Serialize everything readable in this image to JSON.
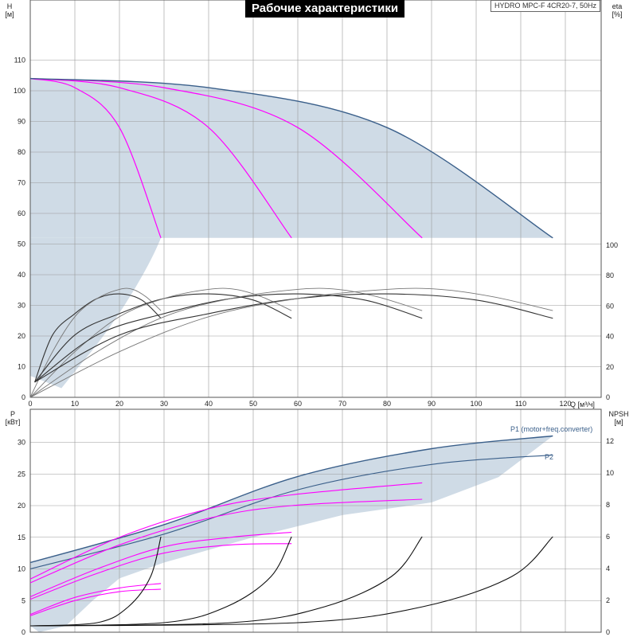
{
  "title": "Рабочие характеристики",
  "model": "HYDRO MPC-F 4CR20-7, 50Hz",
  "colors": {
    "envelope": "#cfdbe6",
    "max_curve": "#3a5f8a",
    "pump_curve": "#ff00ff",
    "eff_curve": "#222222",
    "grid": "#999999"
  },
  "chart_data": [
    {
      "type": "line",
      "name": "top",
      "axes": {
        "x": {
          "label": "Q",
          "unit": "[м³/ч]",
          "ticks": [
            0,
            10,
            20,
            30,
            40,
            50,
            60,
            70,
            80,
            90,
            100,
            110,
            120
          ]
        },
        "y_left": {
          "label": "H",
          "unit": "[м]",
          "ticks": [
            0,
            10,
            20,
            30,
            40,
            50,
            60,
            70,
            80,
            90,
            100,
            110
          ]
        },
        "y_right": {
          "label": "eta",
          "unit": "[%]",
          "ticks": [
            0,
            20,
            40,
            60,
            80,
            100
          ]
        }
      },
      "head_curves": [
        {
          "pumps": 1,
          "points": [
            [
              0,
              104
            ],
            [
              10,
              101
            ],
            [
              20,
              88
            ],
            [
              29.3,
              52
            ]
          ]
        },
        {
          "pumps": 2,
          "points": [
            [
              0,
              104
            ],
            [
              20,
              101
            ],
            [
              40,
              88
            ],
            [
              58.6,
              52
            ]
          ]
        },
        {
          "pumps": 3,
          "points": [
            [
              0,
              104
            ],
            [
              30,
              101
            ],
            [
              60,
              88
            ],
            [
              87.9,
              52
            ]
          ]
        },
        {
          "pumps": 4,
          "points": [
            [
              0,
              104
            ],
            [
              40,
              101
            ],
            [
              80,
              88
            ],
            [
              117.2,
              52
            ]
          ]
        }
      ],
      "eff_curves": [
        {
          "points": [
            [
              1,
              10
            ],
            [
              5,
              41
            ],
            [
              10,
              55
            ],
            [
              15,
              65
            ],
            [
              20,
              68
            ],
            [
              25,
              64
            ],
            [
              29.3,
              52
            ]
          ]
        },
        {
          "points": [
            [
              0,
              0
            ],
            [
              5,
              30
            ],
            [
              10,
              53
            ],
            [
              15,
              65
            ],
            [
              20,
              71
            ],
            [
              23,
              71
            ],
            [
              26,
              66
            ],
            [
              29.3,
              57
            ]
          ]
        },
        {
          "points": [
            [
              1,
              10
            ],
            [
              10,
              41
            ],
            [
              20,
              55
            ],
            [
              30,
              65
            ],
            [
              40,
              68
            ],
            [
              50,
              64
            ],
            [
              58.6,
              52
            ]
          ]
        },
        {
          "points": [
            [
              0,
              0
            ],
            [
              10,
              30
            ],
            [
              20,
              53
            ],
            [
              30,
              65
            ],
            [
              40,
              71
            ],
            [
              46,
              71
            ],
            [
              52,
              66
            ],
            [
              58.6,
              57
            ]
          ]
        },
        {
          "points": [
            [
              1,
              10
            ],
            [
              15,
              41
            ],
            [
              30,
              55
            ],
            [
              45,
              65
            ],
            [
              60,
              68
            ],
            [
              75,
              64
            ],
            [
              87.9,
              52
            ]
          ]
        },
        {
          "points": [
            [
              0,
              0
            ],
            [
              15,
              30
            ],
            [
              30,
              53
            ],
            [
              45,
              65
            ],
            [
              60,
              71
            ],
            [
              69,
              71
            ],
            [
              78,
              66
            ],
            [
              87.9,
              57
            ]
          ]
        },
        {
          "points": [
            [
              1,
              10
            ],
            [
              20,
              41
            ],
            [
              40,
              55
            ],
            [
              60,
              65
            ],
            [
              80,
              68
            ],
            [
              100,
              64
            ],
            [
              117.2,
              52
            ]
          ]
        },
        {
          "points": [
            [
              0,
              0
            ],
            [
              20,
              30
            ],
            [
              40,
              53
            ],
            [
              60,
              65
            ],
            [
              80,
              71
            ],
            [
              92,
              71
            ],
            [
              104,
              66
            ],
            [
              117.2,
              57
            ]
          ]
        }
      ]
    },
    {
      "type": "line",
      "name": "bottom",
      "axes": {
        "y_left": {
          "label": "P",
          "unit": "[кВт]",
          "ticks": [
            0,
            5,
            10,
            15,
            20,
            25,
            30
          ]
        },
        "y_right": {
          "label": "NPSH",
          "unit": "[м]",
          "ticks": [
            0,
            2,
            4,
            6,
            8,
            10,
            12
          ]
        }
      },
      "series_labels": {
        "p1": "P1 (motor+freq.converter)",
        "p2": "P2"
      },
      "p1_curve": {
        "points": [
          [
            0,
            11
          ],
          [
            30,
            17
          ],
          [
            60,
            24.6
          ],
          [
            90,
            29
          ],
          [
            117.2,
            31
          ]
        ]
      },
      "p2_curve": {
        "points": [
          [
            0,
            10
          ],
          [
            30,
            15.5
          ],
          [
            60,
            22.5
          ],
          [
            90,
            26.5
          ],
          [
            117.2,
            28
          ]
        ]
      },
      "pump_power_curves": [
        {
          "points": [
            [
              0,
              8.4
            ],
            [
              20,
              15
            ],
            [
              40,
              19.5
            ],
            [
              58.6,
              21.7
            ],
            [
              87.9,
              23.6
            ]
          ]
        },
        {
          "points": [
            [
              0,
              7.8
            ],
            [
              20,
              13.8
            ],
            [
              40,
              18
            ],
            [
              58.6,
              20
            ],
            [
              87.9,
              21
            ]
          ]
        },
        {
          "points": [
            [
              0,
              5.6
            ],
            [
              15,
              10
            ],
            [
              30,
              13.5
            ],
            [
              45,
              15
            ],
            [
              58.6,
              15.8
            ]
          ]
        },
        {
          "points": [
            [
              0,
              5.2
            ],
            [
              15,
              9.3
            ],
            [
              30,
              12.5
            ],
            [
              45,
              13.8
            ],
            [
              58.6,
              14
            ]
          ]
        },
        {
          "points": [
            [
              0,
              2.8
            ],
            [
              10,
              5.5
            ],
            [
              20,
              7
            ],
            [
              29.3,
              7.7
            ]
          ]
        },
        {
          "points": [
            [
              0,
              2.6
            ],
            [
              10,
              5
            ],
            [
              20,
              6.4
            ],
            [
              29.3,
              6.8
            ]
          ]
        }
      ],
      "npsh_curves": [
        {
          "points": [
            [
              0,
              0.4
            ],
            [
              15,
              0.6
            ],
            [
              22,
              1.6
            ],
            [
              27,
              3.5
            ],
            [
              29.3,
              6
            ]
          ]
        },
        {
          "points": [
            [
              0,
              0.4
            ],
            [
              30,
              0.6
            ],
            [
              44,
              1.6
            ],
            [
              54,
              3.5
            ],
            [
              58.6,
              6
            ]
          ]
        },
        {
          "points": [
            [
              0,
              0.4
            ],
            [
              45,
              0.6
            ],
            [
              66,
              1.6
            ],
            [
              81,
              3.5
            ],
            [
              87.9,
              6
            ]
          ]
        },
        {
          "points": [
            [
              0,
              0.4
            ],
            [
              60,
              0.6
            ],
            [
              88,
              1.6
            ],
            [
              108,
              3.5
            ],
            [
              117.2,
              6
            ]
          ]
        }
      ]
    }
  ]
}
